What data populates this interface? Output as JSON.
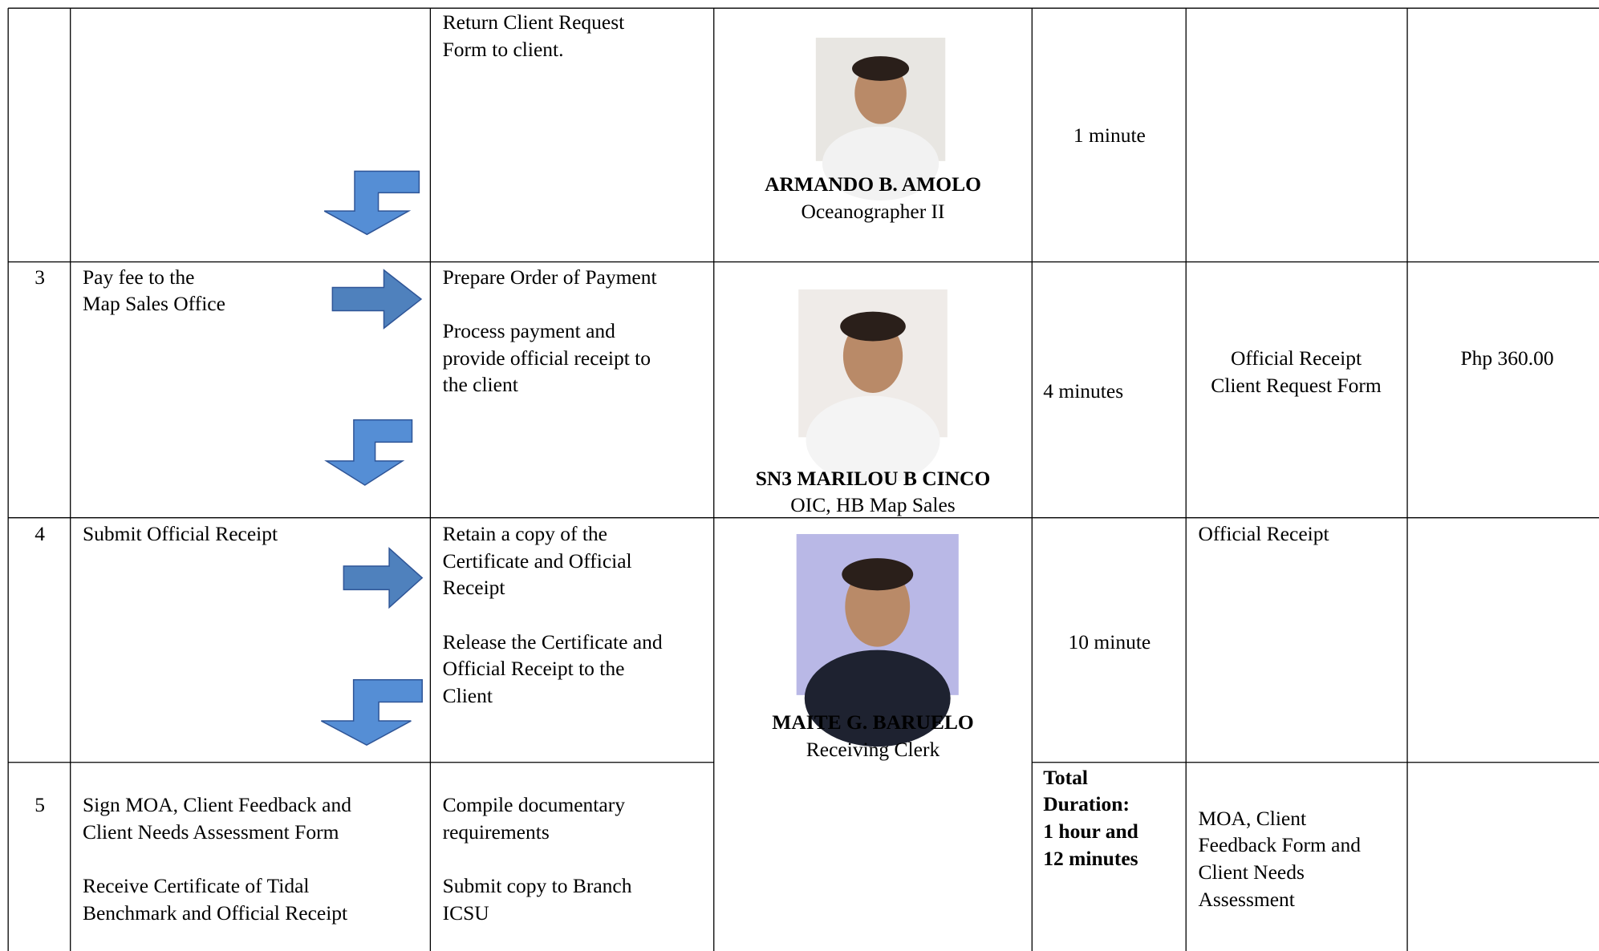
{
  "table": {
    "rows": [
      {
        "agency_action": [
          [
            "Return Client Request",
            "Form to client."
          ]
        ],
        "person": {
          "name": "ARMANDO B. AMOLO",
          "position": "Oceanographer II"
        },
        "processing_time": [
          "1 minute"
        ]
      },
      {
        "step": "3",
        "client_step": [
          [
            "Pay fee to the",
            "Map Sales Office"
          ]
        ],
        "agency_action": [
          [
            "Prepare Order of Payment"
          ],
          [
            "Process payment and",
            "provide official receipt to",
            "the client"
          ]
        ],
        "person": {
          "name": "SN3 MARILOU B CINCO",
          "position": "OIC, HB Map Sales"
        },
        "processing_time": [
          "4 minutes"
        ],
        "requirements": [
          "Official Receipt",
          "Client Request Form"
        ],
        "fees": "Php 360.00"
      },
      {
        "step": "4",
        "client_step": [
          [
            "Submit Official Receipt"
          ]
        ],
        "agency_action": [
          [
            "Retain a copy of the",
            "Certificate and Official",
            "Receipt"
          ],
          [
            "Release the Certificate and",
            "Official Receipt to the",
            "Client"
          ]
        ],
        "person": {
          "name": "MAITE G. BARUELO",
          "position": "Receiving Clerk"
        },
        "processing_time": [
          "10 minute"
        ],
        "requirements": [
          "Official Receipt"
        ]
      },
      {
        "step": "5",
        "client_step": [
          [
            "Sign MOA, Client Feedback and",
            "Client Needs Assessment Form"
          ],
          [
            "Receive Certificate of Tidal",
            "Benchmark and Official Receipt"
          ]
        ],
        "agency_action": [
          [
            "Compile documentary",
            "requirements"
          ],
          [
            "Submit copy to Branch",
            "ICSU"
          ]
        ],
        "processing_time": [
          "Total",
          "Duration:",
          "1 hour and",
          "12 minutes"
        ],
        "requirements": [
          "MOA, Client",
          "Feedback Form and",
          "Client Needs",
          "Assessment"
        ]
      }
    ]
  }
}
